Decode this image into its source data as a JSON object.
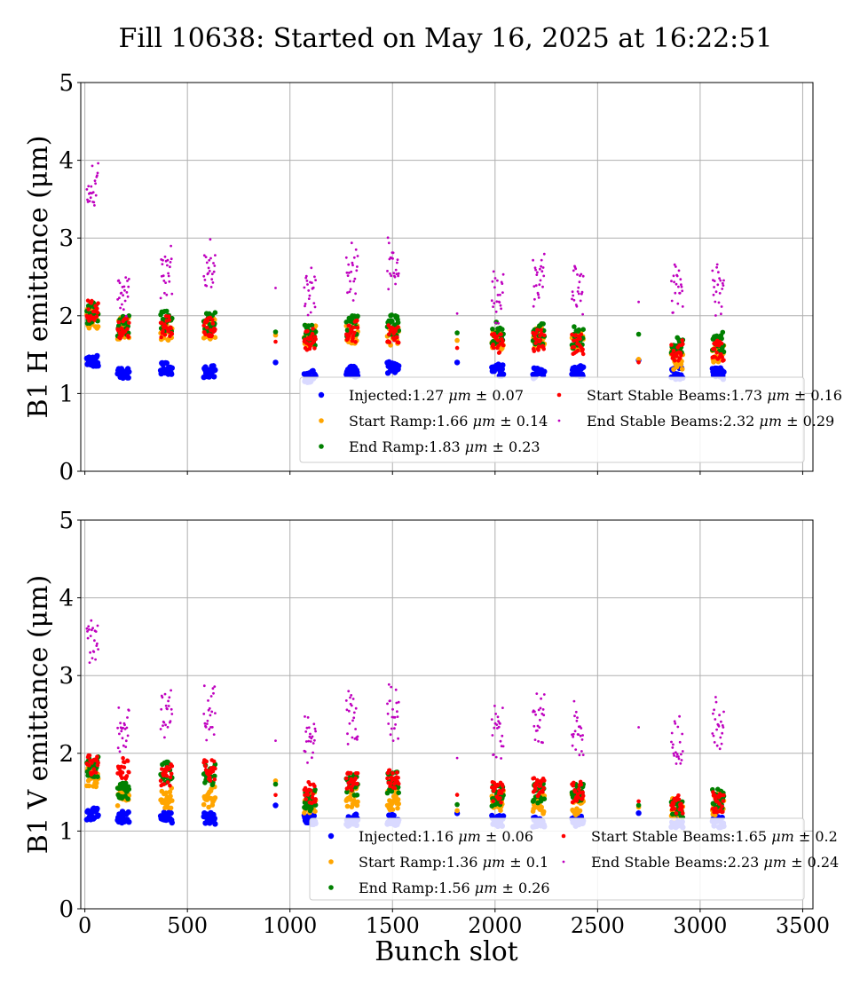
{
  "figure": {
    "title": "Fill 10638: Started on May 16, 2025 at 16:22:51",
    "xlabel": "Bunch slot"
  },
  "colors": {
    "injected": "#0000ff",
    "start_ramp": "#ffa500",
    "end_ramp": "#008000",
    "start_stable": "#ff0000",
    "end_stable": "#bf00bf",
    "grid": "#b0b0b0"
  },
  "chart_data": [
    {
      "type": "scatter",
      "title": "",
      "xlabel": "",
      "ylabel": "B1 H emittance (μm)",
      "xlim": [
        -20,
        3550
      ],
      "ylim": [
        0,
        5
      ],
      "xticks": [
        0,
        500,
        1000,
        1500,
        2000,
        2500,
        3000,
        3500
      ],
      "xtick_labels_shown": false,
      "yticks": [
        0,
        1,
        2,
        3,
        4,
        5
      ],
      "grid": true,
      "legend_placement": "lower-right",
      "clusters": [
        10,
        160,
        370,
        580,
        930,
        1070,
        1275,
        1475,
        1815,
        1985,
        2185,
        2375,
        2700,
        2860,
        3060
      ],
      "series": [
        {
          "key": "injected",
          "name": "Injected",
          "label_value": "1.27",
          "label_err": "0.07",
          "marker": "large",
          "values": [
            1.42,
            1.26,
            1.32,
            1.28,
            1.35,
            1.22,
            1.28,
            1.33,
            1.38,
            1.3,
            1.26,
            1.29,
            1.36,
            1.26,
            1.26
          ]
        },
        {
          "key": "start_ramp",
          "name": "Start Ramp",
          "label_value": "1.66",
          "label_err": "0.14",
          "marker": "medium",
          "values": [
            1.97,
            1.84,
            1.82,
            1.84,
            1.68,
            1.74,
            1.74,
            1.74,
            1.64,
            1.7,
            1.72,
            1.68,
            1.47,
            1.45,
            1.5
          ]
        },
        {
          "key": "end_ramp",
          "name": "End Ramp",
          "label_value": "1.83",
          "label_err": "0.23",
          "marker": "medium",
          "values": [
            2.03,
            1.88,
            1.93,
            1.93,
            1.75,
            1.76,
            1.86,
            1.87,
            1.7,
            1.78,
            1.76,
            1.72,
            1.63,
            1.6,
            1.66
          ]
        },
        {
          "key": "start_stable",
          "name": "Start Stable Beams",
          "label_value": "1.73",
          "label_err": "0.16",
          "marker": "small",
          "values": [
            2.06,
            1.84,
            1.86,
            1.84,
            1.69,
            1.7,
            1.8,
            1.79,
            1.68,
            1.66,
            1.68,
            1.62,
            1.5,
            1.55,
            1.55
          ]
        },
        {
          "key": "end_stable",
          "name": "End Stable Beams",
          "label_value": "2.32",
          "label_err": "0.29",
          "marker": "tiny",
          "values": [
            3.6,
            2.3,
            2.55,
            2.55,
            2.2,
            2.3,
            2.55,
            2.6,
            1.88,
            2.2,
            2.4,
            2.3,
            2.22,
            2.35,
            2.3
          ]
        }
      ]
    },
    {
      "type": "scatter",
      "title": "",
      "xlabel": "Bunch slot",
      "ylabel": "B1 V emittance (μm)",
      "xlim": [
        -20,
        3550
      ],
      "ylim": [
        0,
        5
      ],
      "xticks": [
        0,
        500,
        1000,
        1500,
        2000,
        2500,
        3000,
        3500
      ],
      "xtick_labels_shown": true,
      "yticks": [
        0,
        1,
        2,
        3,
        4,
        5
      ],
      "grid": true,
      "legend_placement": "lower-right",
      "clusters": [
        10,
        160,
        370,
        580,
        930,
        1070,
        1275,
        1475,
        1815,
        1985,
        2185,
        2375,
        2700,
        2860,
        3060
      ],
      "series": [
        {
          "key": "injected",
          "name": "Injected",
          "label_value": "1.16",
          "label_err": "0.06",
          "marker": "large",
          "values": [
            1.22,
            1.18,
            1.18,
            1.16,
            1.37,
            1.14,
            1.14,
            1.14,
            1.29,
            1.13,
            1.13,
            1.14,
            1.23,
            1.12,
            1.12
          ]
        },
        {
          "key": "start_ramp",
          "name": "Start Ramp",
          "label_value": "1.36",
          "label_err": "0.1",
          "marker": "medium",
          "values": [
            1.7,
            1.46,
            1.42,
            1.44,
            1.52,
            1.36,
            1.44,
            1.4,
            1.4,
            1.38,
            1.36,
            1.34,
            1.3,
            1.3,
            1.34
          ]
        },
        {
          "key": "end_ramp",
          "name": "End Ramp",
          "label_value": "1.56",
          "label_err": "0.26",
          "marker": "medium",
          "values": [
            1.82,
            1.52,
            1.75,
            1.72,
            1.48,
            1.4,
            1.6,
            1.62,
            1.38,
            1.45,
            1.5,
            1.48,
            1.25,
            1.28,
            1.4
          ]
        },
        {
          "key": "start_stable",
          "name": "Start Stable Beams",
          "label_value": "1.65",
          "label_err": "0.2",
          "marker": "small",
          "values": [
            1.85,
            1.8,
            1.72,
            1.78,
            1.56,
            1.5,
            1.62,
            1.68,
            1.45,
            1.5,
            1.56,
            1.5,
            1.35,
            1.32,
            1.38
          ]
        },
        {
          "key": "end_stable",
          "name": "End Stable Beams",
          "label_value": "2.23",
          "label_err": "0.24",
          "marker": "tiny",
          "values": [
            3.4,
            2.25,
            2.45,
            2.45,
            2.2,
            2.2,
            2.45,
            2.45,
            1.88,
            2.2,
            2.35,
            2.25,
            2.35,
            2.1,
            2.3
          ]
        }
      ]
    }
  ]
}
